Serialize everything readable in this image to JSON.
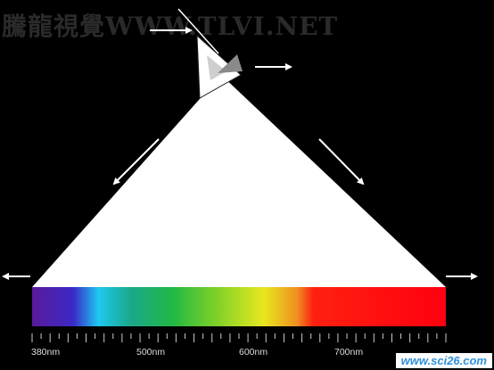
{
  "watermark": {
    "text": "騰龍視覺WWW.TLVI.NET"
  },
  "corner_badge": {
    "text": "www.sci26.com"
  },
  "spectrum": {
    "labels": [
      "380nm",
      "500nm",
      "600nm",
      "700nm"
    ],
    "colors": [
      "#5a1a9a",
      "#3a2ac8",
      "#1ec8f0",
      "#1aa88a",
      "#22b844",
      "#7ad028",
      "#e8e820",
      "#f09020",
      "#ff2010",
      "#ff0010"
    ]
  }
}
